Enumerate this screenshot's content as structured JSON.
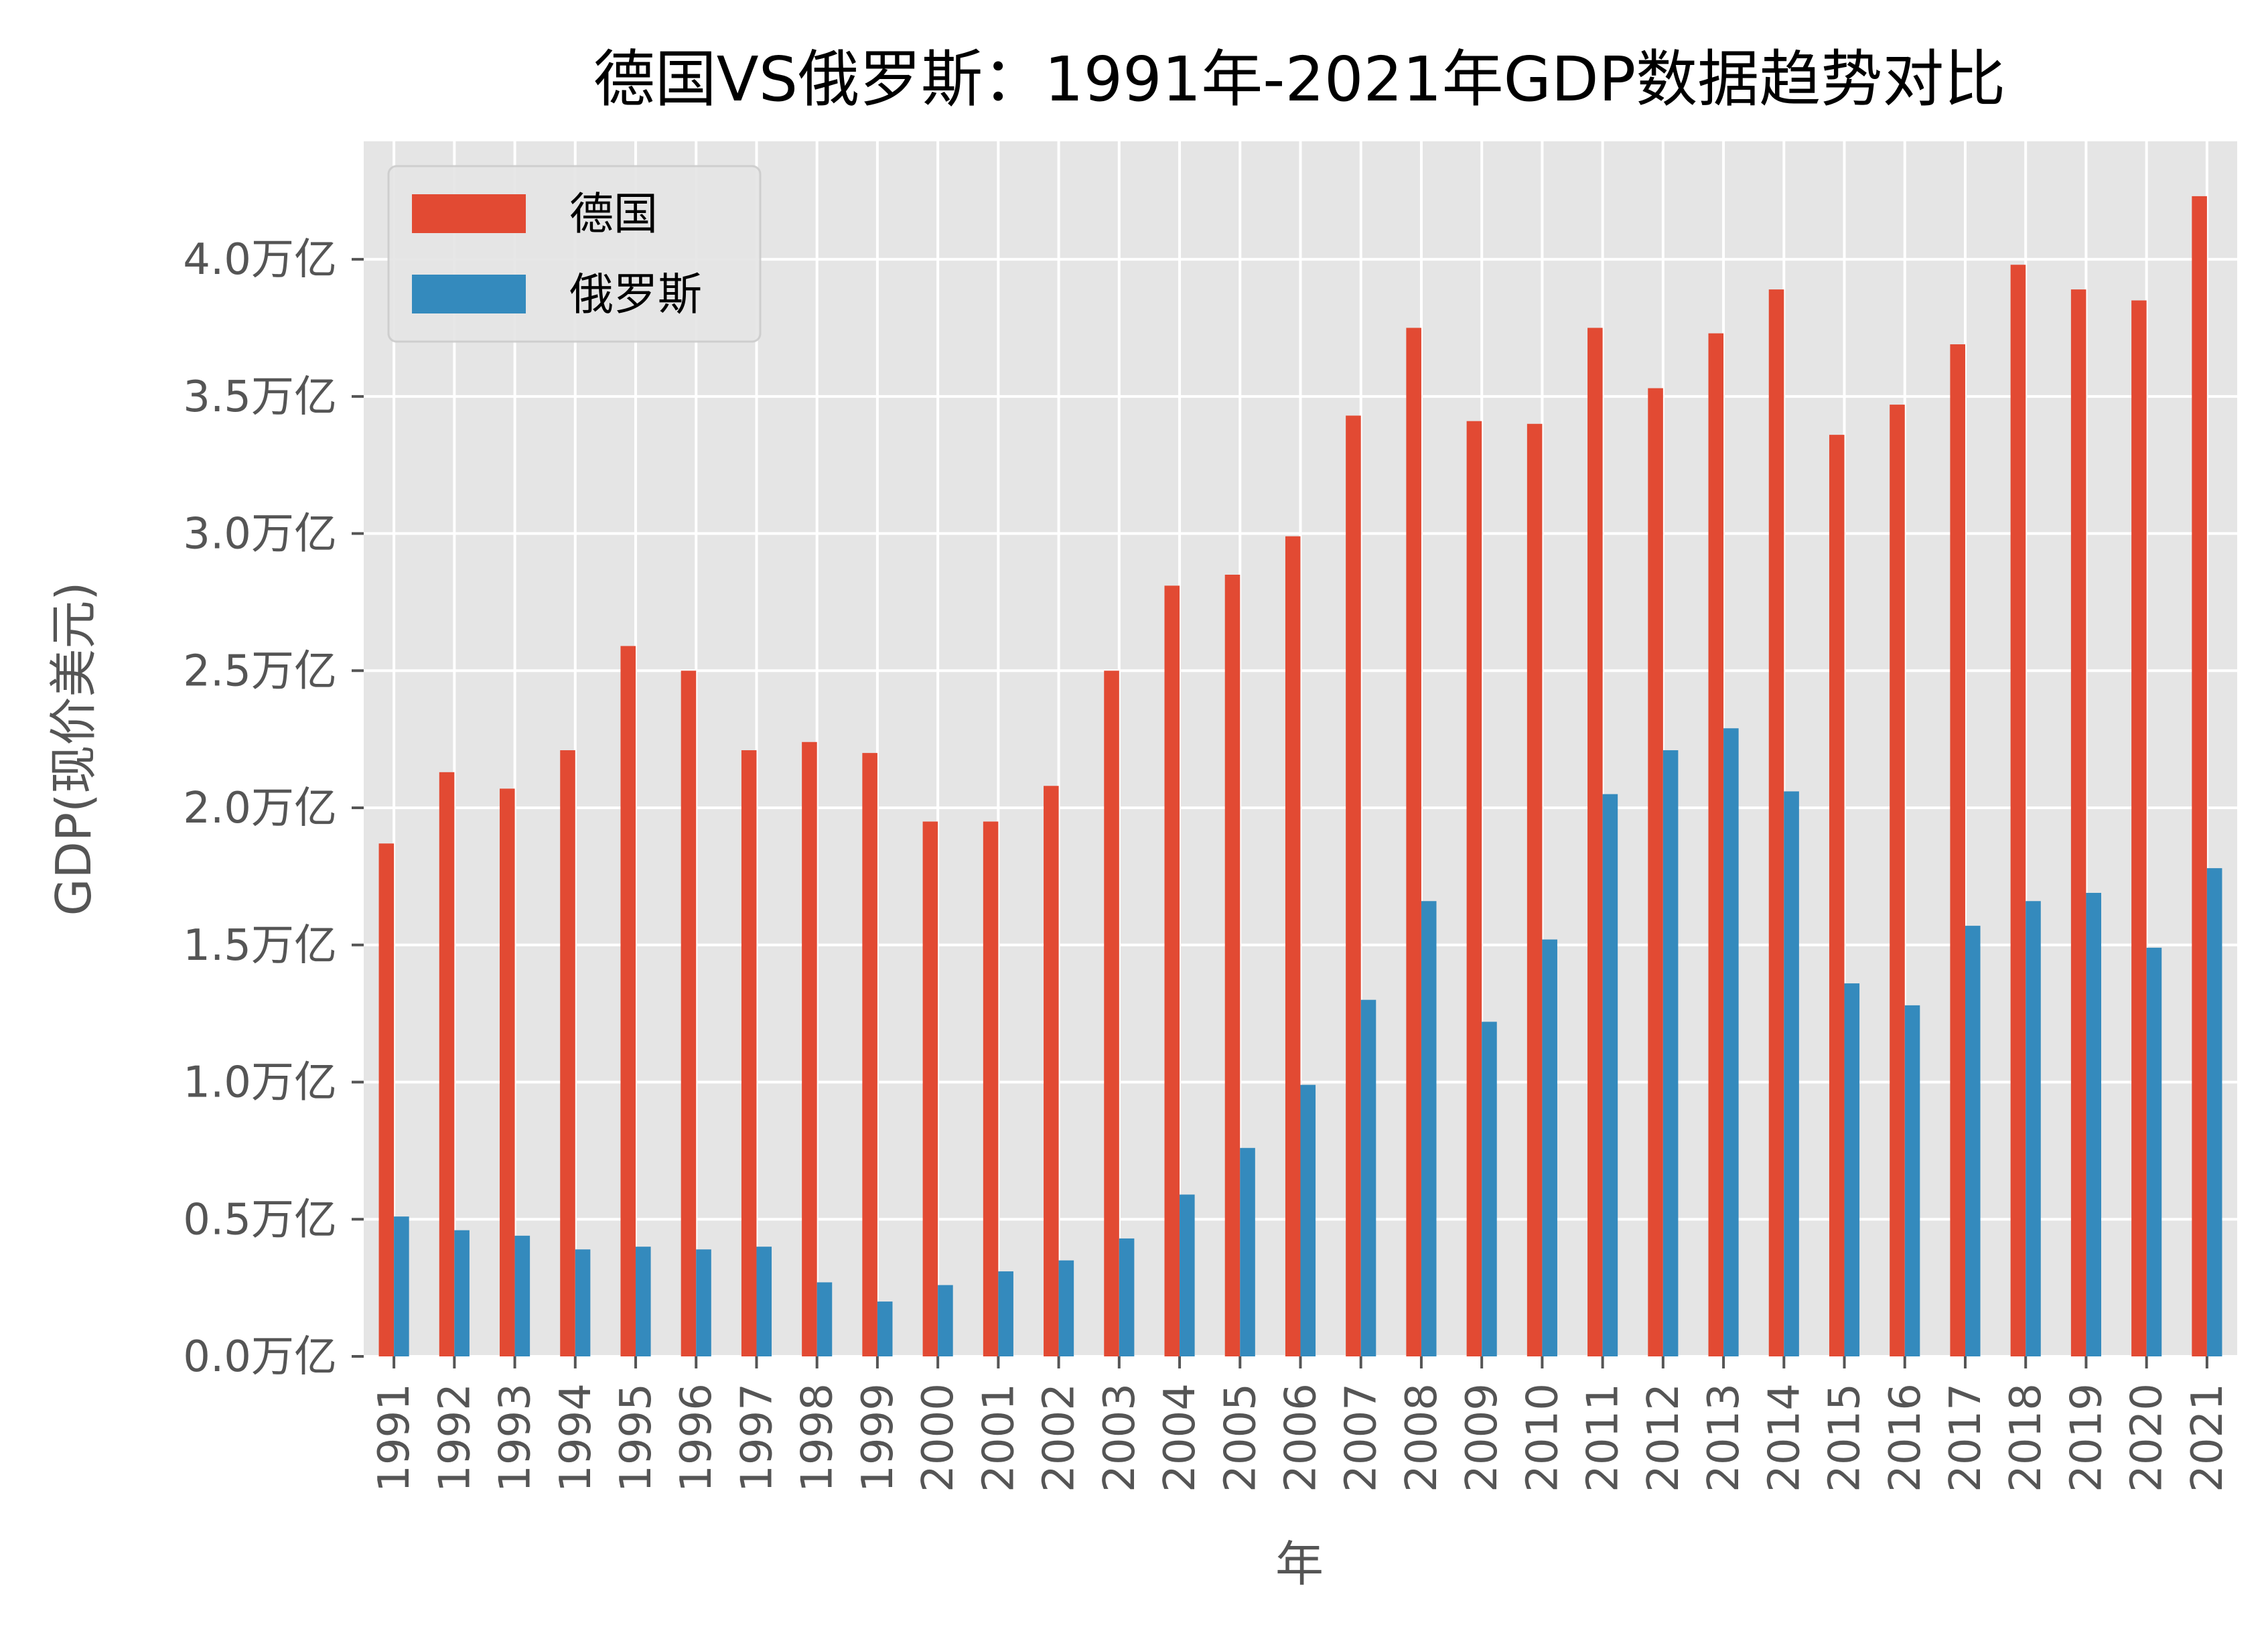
{
  "chart_data": {
    "type": "bar",
    "title": "德国VS俄罗斯：1991年-2021年GDP数据趋势对比",
    "xlabel": "年",
    "ylabel": "GDP(现价美元)",
    "ylim": [
      0,
      4.43
    ],
    "yticks": [
      0,
      0.5,
      1.0,
      1.5,
      2.0,
      2.5,
      3.0,
      3.5,
      4.0
    ],
    "ytick_labels": [
      "0.0万亿",
      "0.5万亿",
      "1.0万亿",
      "1.5万亿",
      "2.0万亿",
      "2.5万亿",
      "3.0万亿",
      "3.5万亿",
      "4.0万亿"
    ],
    "grid": true,
    "legend_position": "top-left",
    "categories": [
      "1991",
      "1992",
      "1993",
      "1994",
      "1995",
      "1996",
      "1997",
      "1998",
      "1999",
      "2000",
      "2001",
      "2002",
      "2003",
      "2004",
      "2005",
      "2006",
      "2007",
      "2008",
      "2009",
      "2010",
      "2011",
      "2012",
      "2013",
      "2014",
      "2015",
      "2016",
      "2017",
      "2018",
      "2019",
      "2020",
      "2021"
    ],
    "series": [
      {
        "name": "德国",
        "color": "#E24A33",
        "values": [
          1.87,
          2.13,
          2.07,
          2.21,
          2.59,
          2.5,
          2.21,
          2.24,
          2.2,
          1.95,
          1.95,
          2.08,
          2.5,
          2.81,
          2.85,
          2.99,
          3.43,
          3.75,
          3.41,
          3.4,
          3.75,
          3.53,
          3.73,
          3.89,
          3.36,
          3.47,
          3.69,
          3.98,
          3.89,
          3.85,
          4.23
        ]
      },
      {
        "name": "俄罗斯",
        "color": "#348ABD",
        "values": [
          0.51,
          0.46,
          0.44,
          0.39,
          0.4,
          0.39,
          0.4,
          0.27,
          0.2,
          0.26,
          0.31,
          0.35,
          0.43,
          0.59,
          0.76,
          0.99,
          1.3,
          1.66,
          1.22,
          1.52,
          2.05,
          2.21,
          2.29,
          2.06,
          1.36,
          1.28,
          1.57,
          1.66,
          1.69,
          1.49,
          1.78
        ]
      }
    ],
    "background": "#E5E5E5"
  }
}
